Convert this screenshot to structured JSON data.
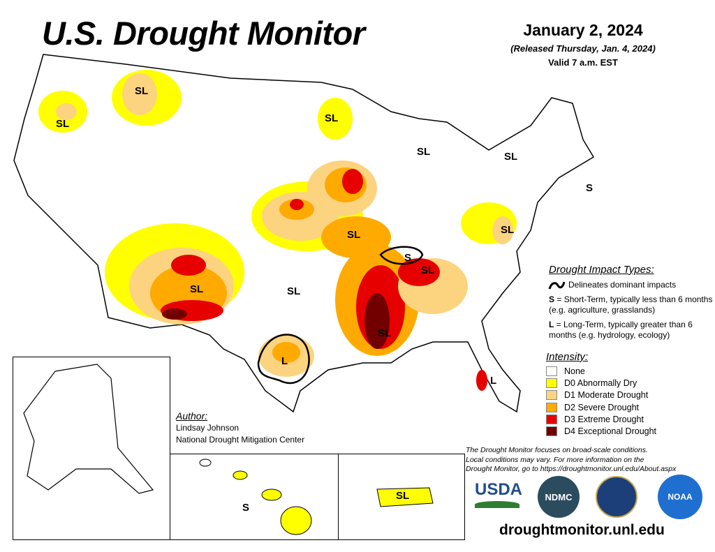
{
  "header": {
    "title": "U.S. Drought Monitor",
    "date": "January 2, 2024",
    "released": "(Released Thursday, Jan. 4, 2024)",
    "valid": "Valid 7 a.m. EST"
  },
  "map_labels": [
    "SL",
    "SL",
    "SL",
    "SL",
    "SL",
    "S",
    "SL",
    "SL",
    "S",
    "SL",
    "SL",
    "SL",
    "SL",
    "L",
    "L",
    "S",
    "SL"
  ],
  "impact_types": {
    "heading": "Drought Impact Types:",
    "delineates": "Delineates dominant impacts",
    "short_key": "S",
    "short_text": " = Short-Term, typically less than 6 months (e.g. agriculture, grasslands)",
    "long_key": "L",
    "long_text": " = Long-Term, typically greater than 6 months (e.g. hydrology, ecology)"
  },
  "intensity": {
    "heading": "Intensity:",
    "levels": [
      {
        "label": "None",
        "color": "#ffffff"
      },
      {
        "label": "D0 Abnormally Dry",
        "color": "#ffff00"
      },
      {
        "label": "D1 Moderate Drought",
        "color": "#fcd37f"
      },
      {
        "label": "D2 Severe Drought",
        "color": "#ffaa00"
      },
      {
        "label": "D3 Extreme Drought",
        "color": "#e60000"
      },
      {
        "label": "D4 Exceptional Drought",
        "color": "#730000"
      }
    ]
  },
  "author": {
    "heading": "Author:",
    "name": "Lindsay Johnson",
    "org": "National Drought Mitigation Center"
  },
  "note": {
    "line1": "The Drought Monitor focuses on broad-scale conditions.",
    "line2": "Local conditions may vary. For more information on the",
    "line3": "Drought Monitor, go to https://droughtmonitor.unl.edu/About.aspx"
  },
  "logos": {
    "usda": "USDA",
    "ndmc": "NDMC",
    "noaa": "NOAA"
  },
  "url": "droughtmonitor.unl.edu"
}
